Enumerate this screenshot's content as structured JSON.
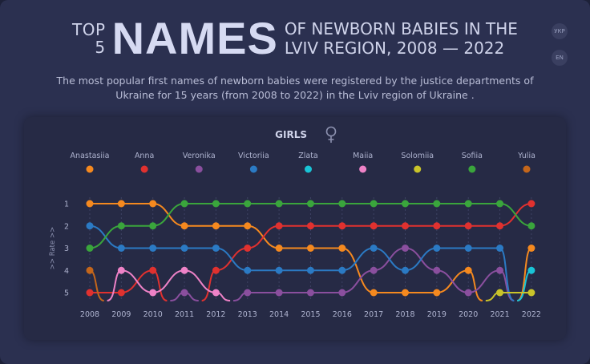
{
  "header": {
    "top_label": "TOP",
    "five_label": "5",
    "big_word": "NAMES",
    "rest_line1": "OF NEWBORN BABIES IN THE",
    "rest_line2": "LVIV REGION, 2008 — 2022",
    "subtitle": "The most popular first names of newborn babies were registered by the justice departments of Ukraine for 15 years (from 2008 to 2022) in the Lviv region of Ukraine ."
  },
  "languages": [
    "УКР",
    "EN"
  ],
  "chart_data": {
    "type": "line",
    "title": "GIRLS",
    "title_icon": "female-symbol-icon",
    "ylabel": ">> Rate >>",
    "x": [
      2008,
      2009,
      2010,
      2011,
      2012,
      2013,
      2014,
      2015,
      2016,
      2017,
      2018,
      2019,
      2020,
      2021,
      2022
    ],
    "y_ticks": [
      1,
      2,
      3,
      4,
      5
    ],
    "ylim": [
      1,
      5
    ],
    "y_inverted": true,
    "grid": "vertical dashed",
    "legend_placement": "top",
    "series": [
      {
        "name": "Anastasiia",
        "color": "#f5891f",
        "values": [
          1,
          1,
          1,
          2,
          2,
          2,
          3,
          3,
          3,
          5,
          5,
          5,
          4,
          null,
          3
        ]
      },
      {
        "name": "Anna",
        "color": "#e0312f",
        "values": [
          5,
          5,
          4,
          null,
          4,
          3,
          2,
          2,
          2,
          2,
          2,
          2,
          2,
          2,
          1
        ]
      },
      {
        "name": "Veronika",
        "color": "#8a4f9e",
        "values": [
          null,
          null,
          null,
          5,
          null,
          5,
          5,
          5,
          5,
          4,
          3,
          4,
          5,
          4,
          null
        ]
      },
      {
        "name": "Victoriia",
        "color": "#2b7ac4",
        "values": [
          2,
          3,
          3,
          3,
          3,
          4,
          4,
          4,
          4,
          3,
          4,
          3,
          3,
          3,
          null
        ]
      },
      {
        "name": "Zlata",
        "color": "#19c4d6",
        "values": [
          null,
          null,
          null,
          null,
          null,
          null,
          null,
          null,
          null,
          null,
          null,
          null,
          null,
          null,
          4
        ]
      },
      {
        "name": "Maiia",
        "color": "#ee82c7",
        "values": [
          null,
          4,
          5,
          4,
          5,
          null,
          null,
          null,
          null,
          null,
          null,
          null,
          null,
          null,
          null
        ]
      },
      {
        "name": "Solomiia",
        "color": "#c9c42a",
        "values": [
          null,
          null,
          null,
          null,
          null,
          null,
          null,
          null,
          null,
          null,
          null,
          null,
          null,
          5,
          5
        ]
      },
      {
        "name": "Sofiia",
        "color": "#3aa53c",
        "values": [
          3,
          2,
          2,
          1,
          1,
          1,
          1,
          1,
          1,
          1,
          1,
          1,
          1,
          1,
          2
        ]
      },
      {
        "name": "Yulia",
        "color": "#c4661b",
        "values": [
          4,
          null,
          null,
          null,
          null,
          null,
          null,
          null,
          null,
          null,
          null,
          null,
          null,
          null,
          null
        ]
      }
    ]
  }
}
